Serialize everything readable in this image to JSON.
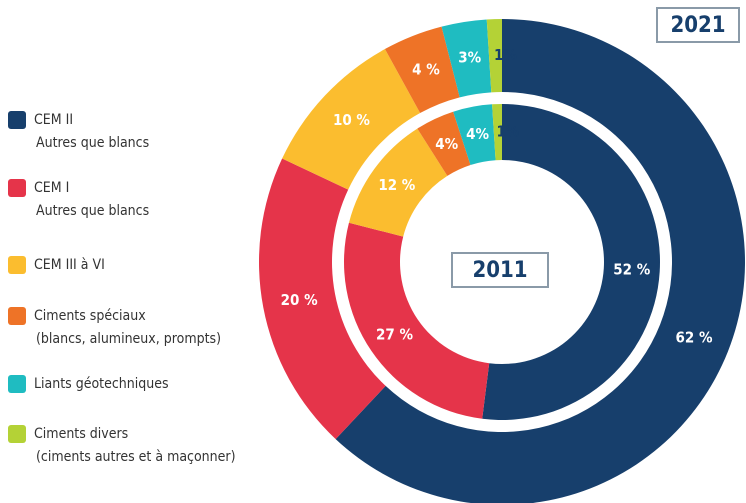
{
  "legend": {
    "categories": [
      "CEM II",
      "CEM I",
      "CEM III à VI",
      "Ciments spéciaux",
      "Liants géotechniques",
      "Ciments divers"
    ],
    "details": [
      "Autres que blancs",
      "Autres que blancs",
      null,
      "(blancs, alumineux, prompts)",
      null,
      "(ciments autres et à maçonner)"
    ],
    "colors": [
      "#173f6c",
      "#e5344a",
      "#fbbd2f",
      "#ee7327",
      "#1fbcc1",
      "#b4d236"
    ]
  },
  "chart_data": [
    {
      "type": "donut",
      "title": "2021",
      "values": [
        62,
        20,
        10,
        4,
        3,
        1
      ],
      "value_labels": [
        "62 %",
        "20 %",
        "10 %",
        "4 %",
        "3%",
        "1%"
      ]
    },
    {
      "type": "donut",
      "title": "2011",
      "values": [
        52,
        27,
        12,
        4,
        4,
        1
      ],
      "value_labels": [
        "52 %",
        "27 %",
        "12 %",
        "4%",
        "4%",
        "1%"
      ]
    }
  ]
}
